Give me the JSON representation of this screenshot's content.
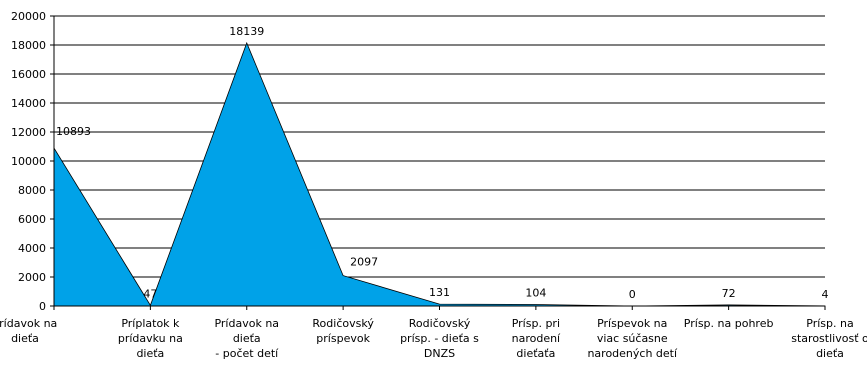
{
  "chart_data": {
    "type": "area",
    "title": "",
    "xlabel": "",
    "ylabel": "",
    "ylim": [
      0,
      20000
    ],
    "yticks": [
      0,
      2000,
      4000,
      6000,
      8000,
      10000,
      12000,
      14000,
      16000,
      18000,
      20000
    ],
    "grid": true,
    "legend": "none",
    "area_color": "#00A2E8",
    "categories": [
      [
        "Prídavok na",
        "dieťa"
      ],
      [
        "Príplatok k",
        "prídavku na",
        "dieťa"
      ],
      [
        "Prídavok na",
        "dieťa",
        "- počet detí"
      ],
      [
        "Rodičovský",
        "príspevok"
      ],
      [
        "Rodičovský",
        "prísp. - dieťa s",
        "DNZS"
      ],
      [
        "Prísp. pri",
        "narodení",
        "dieťaťa"
      ],
      [
        "Príspevok na",
        "viac súčasne",
        "narodených detí"
      ],
      [
        "Prísp. na pohreb"
      ],
      [
        "Prísp. na",
        "starostlivosť o",
        "dieťa"
      ]
    ],
    "values": [
      10893,
      47,
      18139,
      2097,
      131,
      104,
      0,
      72,
      4
    ]
  }
}
